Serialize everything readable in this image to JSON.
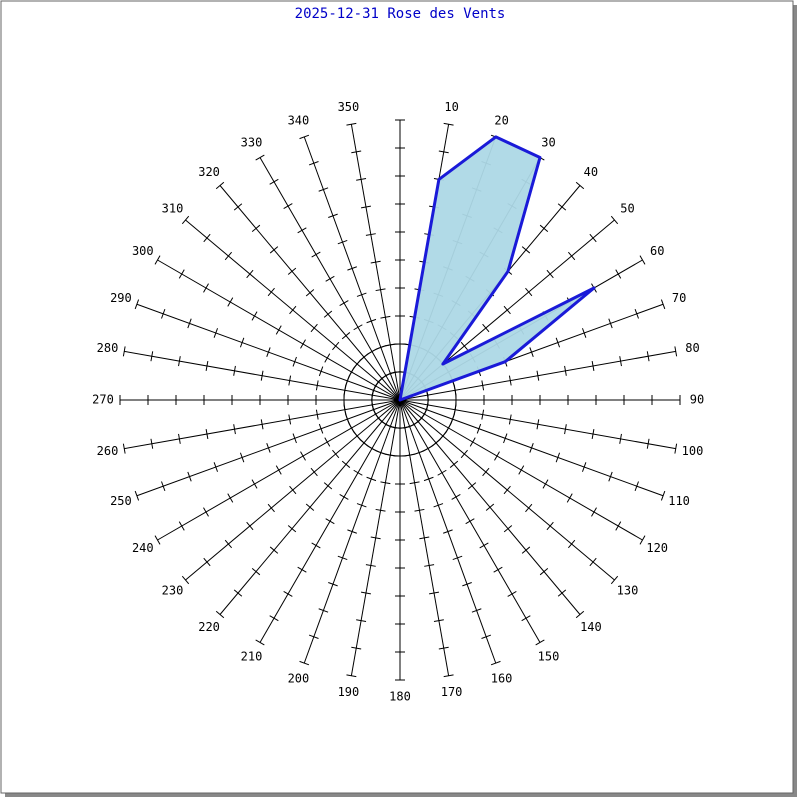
{
  "chart_data": {
    "type": "radar",
    "title": "2025-12-31 Rose des Vents",
    "categories": [
      null,
      "10",
      "20",
      "30",
      "40",
      "50",
      "60",
      "70",
      "80",
      "90",
      "100",
      "110",
      "120",
      "130",
      "140",
      "150",
      "160",
      "170",
      "180",
      "190",
      "200",
      "210",
      "220",
      "230",
      "240",
      "250",
      "260",
      "270",
      "280",
      "290",
      "300",
      "310",
      "320",
      "330",
      "340",
      "350"
    ],
    "values": [
      0,
      8,
      10,
      10,
      6,
      2,
      8,
      4,
      0,
      0,
      0,
      0,
      0,
      0,
      0,
      0,
      0,
      0,
      0,
      0,
      0,
      0,
      0,
      0,
      0,
      0,
      0,
      0,
      0,
      0,
      0,
      0,
      0,
      0,
      0,
      0
    ],
    "rlim": [
      0,
      10
    ],
    "rticks": [
      1,
      2,
      3,
      4,
      5,
      6,
      7,
      8,
      9,
      10
    ],
    "color": "#1a1ad8",
    "fill": "#add8e6"
  }
}
